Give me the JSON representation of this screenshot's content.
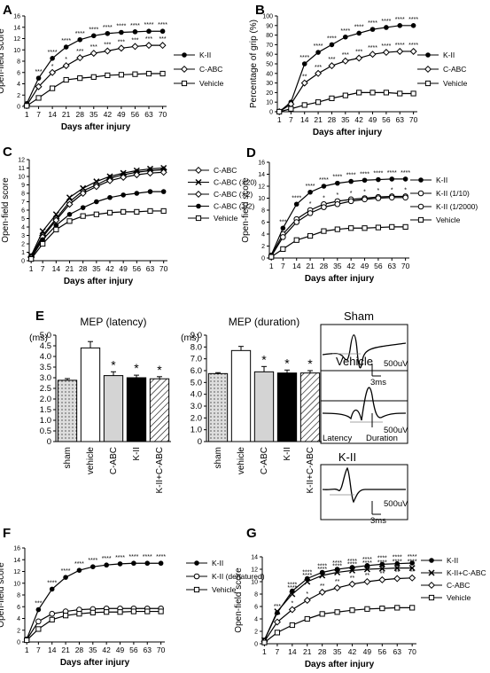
{
  "colors": {
    "ink": "#000000",
    "open": "#ffffff",
    "sham_fill": "#dddddd",
    "cabc_fill": "#d4d4d4"
  },
  "icons": {
    "filled": "filled-circle",
    "diamond": "open-diamond",
    "square": "open-square",
    "circle": "open-circle",
    "cross": "cross",
    "star": "asterisk"
  },
  "chart_data": [
    {
      "id": "A",
      "type": "line",
      "panel_label": "A",
      "xlabel": "Days after injury",
      "ylabel": "Open-field score",
      "ylim": [
        0,
        16
      ],
      "yticks": [
        0,
        2,
        4,
        6,
        8,
        10,
        12,
        14,
        16
      ],
      "x": [
        0,
        1,
        7,
        14,
        21,
        28,
        35,
        42,
        49,
        56,
        63,
        70
      ],
      "legend": {
        "placement": "right"
      },
      "series": [
        {
          "name": "K-II",
          "marker": "filled",
          "values": [
            0,
            0.5,
            5,
            8.5,
            10.5,
            11.8,
            12.5,
            12.9,
            13.1,
            13.2,
            13.3,
            13.3
          ],
          "stars": [
            null,
            null,
            "***",
            "****",
            "****",
            "****",
            "****",
            "****",
            "****",
            "****",
            "****",
            "****"
          ]
        },
        {
          "name": "C-ABC",
          "marker": "diamond",
          "values": [
            0,
            0.2,
            3.5,
            6,
            7.2,
            8.6,
            9.4,
            9.8,
            10.3,
            10.6,
            10.8,
            10.8
          ],
          "stars": [
            null,
            null,
            null,
            "*",
            "*",
            "***",
            "***",
            "***",
            "***",
            "***",
            "***",
            "***"
          ]
        },
        {
          "name": "Vehicle",
          "marker": "square",
          "values": [
            0,
            0.1,
            1.5,
            3.2,
            4.7,
            5,
            5.2,
            5.5,
            5.6,
            5.7,
            5.8,
            5.8
          ]
        }
      ]
    },
    {
      "id": "B",
      "type": "line",
      "panel_label": "B",
      "xlabel": "Days after injury",
      "ylabel": "Percentage of grip (%)",
      "ylim": [
        0,
        100
      ],
      "yticks": [
        0,
        10,
        20,
        30,
        40,
        50,
        60,
        70,
        80,
        90,
        100
      ],
      "x": [
        0,
        1,
        7,
        14,
        21,
        28,
        35,
        42,
        49,
        56,
        63,
        70
      ],
      "legend": {
        "placement": "right"
      },
      "series": [
        {
          "name": "K-II",
          "marker": "filled",
          "values": [
            0,
            0,
            10,
            50,
            62,
            70,
            78,
            82,
            86,
            88,
            90,
            90
          ],
          "stars": [
            null,
            null,
            null,
            "****",
            "****",
            "****",
            "****",
            "****",
            "****",
            "****",
            "****",
            "****"
          ]
        },
        {
          "name": "C-ABC",
          "marker": "diamond",
          "values": [
            0,
            0,
            8,
            30,
            40,
            48,
            53,
            56,
            60,
            62,
            63,
            63
          ],
          "stars": [
            null,
            null,
            null,
            "**",
            "***",
            "***",
            "***",
            "***",
            "****",
            "****",
            "****",
            "****"
          ]
        },
        {
          "name": "Vehicle",
          "marker": "square",
          "values": [
            0,
            0,
            3,
            7,
            10,
            14,
            17,
            20,
            20,
            20,
            19,
            19
          ]
        }
      ]
    },
    {
      "id": "C",
      "type": "line",
      "panel_label": "C",
      "xlabel": "Days after injury",
      "ylabel": "Open-field score",
      "ylim": [
        0,
        12
      ],
      "yticks": [
        0,
        1,
        2,
        3,
        4,
        5,
        6,
        7,
        8,
        9,
        10,
        11,
        12
      ],
      "x": [
        0,
        1,
        7,
        14,
        21,
        28,
        35,
        42,
        49,
        56,
        63,
        70
      ],
      "legend": {
        "placement": "right"
      },
      "series": [
        {
          "name": "C-ABC",
          "marker": "diamond",
          "values": [
            0,
            0.5,
            3,
            5,
            7,
            8.3,
            9,
            9.8,
            10.2,
            10.5,
            10.7,
            10.8
          ]
        },
        {
          "name": "C-ABC (×20)",
          "marker": "cross",
          "values": [
            0,
            0.6,
            3.5,
            5.5,
            7.5,
            8.6,
            9.4,
            10,
            10.4,
            10.7,
            10.9,
            11
          ]
        },
        {
          "name": "C-ABC (×2)",
          "marker": "diamond",
          "values": [
            0,
            0.4,
            2.8,
            4.8,
            6.7,
            8,
            8.8,
            9.5,
            9.9,
            10.2,
            10.4,
            10.5
          ]
        },
        {
          "name": "C-ABC (1/2)",
          "marker": "filled",
          "values": [
            0,
            0.3,
            2.5,
            4.2,
            5.5,
            6.3,
            7,
            7.5,
            7.8,
            8,
            8.2,
            8.2
          ]
        },
        {
          "name": "Vehicle",
          "marker": "square",
          "values": [
            0,
            0.2,
            2,
            3.7,
            4.7,
            5.3,
            5.5,
            5.7,
            5.8,
            5.8,
            5.9,
            5.9
          ]
        }
      ]
    },
    {
      "id": "D",
      "type": "line",
      "panel_label": "D",
      "xlabel": "Days after injury",
      "ylabel": "Open-field score",
      "ylim": [
        0,
        16
      ],
      "yticks": [
        0,
        2,
        4,
        6,
        8,
        10,
        12,
        14,
        16
      ],
      "x": [
        0,
        1,
        7,
        14,
        21,
        28,
        35,
        42,
        49,
        56,
        63,
        70
      ],
      "legend": {
        "placement": "right"
      },
      "series": [
        {
          "name": "K-II",
          "marker": "filled",
          "values": [
            0,
            0.5,
            5,
            9,
            11,
            12,
            12.5,
            12.8,
            13,
            13.1,
            13.2,
            13.2
          ],
          "stars": [
            null,
            null,
            "***",
            "****",
            "****",
            "****",
            "****",
            "****",
            "****",
            "****",
            "****",
            "****"
          ]
        },
        {
          "name": "K-II (1/10)",
          "marker": "circle",
          "values": [
            0,
            0.4,
            4,
            6.5,
            8,
            9,
            9.5,
            9.8,
            10,
            10.2,
            10.3,
            10.3
          ],
          "stars": [
            null,
            null,
            null,
            null,
            "*",
            "*",
            "*",
            "*",
            "*",
            "*",
            "*",
            "*"
          ]
        },
        {
          "name": "K-II (1/2000)",
          "marker": "circle",
          "values": [
            0,
            0.3,
            3.5,
            6,
            7.5,
            8.5,
            9,
            9.5,
            9.8,
            10,
            10.1,
            10.1
          ]
        },
        {
          "name": "Vehicle",
          "marker": "square",
          "values": [
            0,
            0.2,
            1.5,
            3,
            3.7,
            4.5,
            4.8,
            5,
            5,
            5.1,
            5.2,
            5.2
          ]
        }
      ]
    },
    {
      "id": "E1",
      "type": "bar",
      "panel_label": "E",
      "title": "MEP (latency)",
      "unit_label": "(ms)",
      "categories": [
        "sham",
        "vehicle",
        "C-ABC",
        "K-II",
        "K-II+C-ABC"
      ],
      "values": [
        2.88,
        4.4,
        3.1,
        3.0,
        2.95
      ],
      "errors": [
        0.08,
        0.3,
        0.18,
        0.12,
        0.1
      ],
      "stars": [
        null,
        null,
        "*",
        "*",
        "*"
      ],
      "ylim": [
        0,
        5
      ],
      "yticks": [
        0,
        0.5,
        1,
        1.5,
        2,
        2.5,
        3,
        3.5,
        4,
        4.5,
        5
      ],
      "yticklabels": [
        "0",
        "0.5",
        "1.0",
        "1.5",
        "2.0",
        "2.5",
        "3.0",
        "3.5",
        "4.0",
        "4.5",
        "5.0"
      ]
    },
    {
      "id": "E2",
      "type": "bar",
      "title": "MEP (duration)",
      "unit_label": "(ms)",
      "categories": [
        "sham",
        "vehicle",
        "C-ABC",
        "K-II",
        "K-II+C-ABC"
      ],
      "values": [
        5.75,
        7.7,
        5.9,
        5.8,
        5.8
      ],
      "errors": [
        0.08,
        0.35,
        0.45,
        0.25,
        0.2
      ],
      "stars": [
        null,
        null,
        "*",
        "*",
        "*"
      ],
      "ylim": [
        0,
        9
      ],
      "yticks": [
        0,
        1,
        2,
        3,
        4,
        5,
        6,
        7,
        8,
        9
      ],
      "yticklabels": [
        "0",
        "1.0",
        "2.0",
        "3.0",
        "4.0",
        "5.0",
        "6.0",
        "7.0",
        "8.0",
        "9.0"
      ]
    },
    {
      "id": "F",
      "type": "line",
      "panel_label": "F",
      "xlabel": "Days after injury",
      "ylabel": "Open-field score",
      "ylim": [
        0,
        16
      ],
      "yticks": [
        0,
        2,
        4,
        6,
        8,
        10,
        12,
        14,
        16
      ],
      "x": [
        0,
        1,
        7,
        14,
        21,
        28,
        35,
        42,
        49,
        56,
        63,
        70
      ],
      "legend": {
        "placement": "right"
      },
      "series": [
        {
          "name": "K-II",
          "marker": "filled",
          "values": [
            0,
            0.5,
            5.5,
            9,
            11,
            12.2,
            12.8,
            13.1,
            13.3,
            13.4,
            13.4,
            13.4
          ],
          "stars": [
            null,
            null,
            "***",
            "****",
            "****",
            "****",
            "****",
            "****",
            "****",
            "****",
            "****",
            "****"
          ]
        },
        {
          "name": "K-II (denatured)",
          "marker": "circle",
          "values": [
            0,
            0.4,
            3.5,
            4.8,
            5.2,
            5.5,
            5.6,
            5.7,
            5.7,
            5.7,
            5.7,
            5.7
          ]
        },
        {
          "name": "Vehicle",
          "marker": "square",
          "values": [
            0,
            0.3,
            2.2,
            3.8,
            4.5,
            4.8,
            5,
            5.1,
            5.1,
            5.2,
            5.2,
            5.2
          ]
        }
      ]
    },
    {
      "id": "G",
      "type": "line",
      "panel_label": "G",
      "xlabel": "Days after injury",
      "ylabel": "Open-field score",
      "ylim": [
        0,
        14
      ],
      "yticks": [
        0,
        2,
        4,
        6,
        8,
        10,
        12,
        14
      ],
      "x": [
        0,
        1,
        7,
        14,
        21,
        28,
        35,
        42,
        49,
        56,
        63,
        70
      ],
      "legend": {
        "placement": "right"
      },
      "series": [
        {
          "name": "K-II",
          "marker": "filled",
          "values": [
            0,
            0.6,
            5,
            8.5,
            10.5,
            11.5,
            12,
            12.3,
            12.6,
            12.8,
            12.9,
            13
          ],
          "stars": [
            null,
            null,
            "***",
            "****",
            "****",
            "****",
            "****",
            "****",
            "****",
            "****",
            "****",
            "****"
          ]
        },
        {
          "name": "K-II+C-ABC",
          "marker": "cross",
          "values": [
            0,
            0.6,
            5.2,
            8,
            10,
            11,
            11.5,
            11.8,
            12,
            12.1,
            12.2,
            12.2
          ],
          "stars": [
            null,
            null,
            null,
            "****",
            "****",
            "****",
            "****",
            "****",
            "****",
            "****",
            "****",
            "****"
          ]
        },
        {
          "name": "C-ABC",
          "marker": "diamond",
          "values": [
            0,
            0.4,
            3.5,
            5.5,
            7,
            8.3,
            9,
            9.6,
            10,
            10.3,
            10.5,
            10.6
          ],
          "stars": [
            null,
            null,
            null,
            "*",
            "*",
            "**",
            "**",
            "**",
            "**",
            "**",
            "**",
            "**"
          ]
        },
        {
          "name": "Vehicle",
          "marker": "square",
          "values": [
            0,
            0.2,
            1.8,
            3,
            4,
            4.8,
            5.1,
            5.4,
            5.6,
            5.7,
            5.8,
            5.8
          ]
        }
      ]
    }
  ],
  "traces": {
    "sham": {
      "title": "Sham",
      "volt": "500uV",
      "time": "3ms"
    },
    "vehicle": {
      "title": "Vehicle",
      "volt": "500uV",
      "latency_label": "Latency",
      "duration_label": "Duration"
    },
    "k2": {
      "title": "K-II",
      "volt": "500uV",
      "time": "3ms"
    }
  }
}
